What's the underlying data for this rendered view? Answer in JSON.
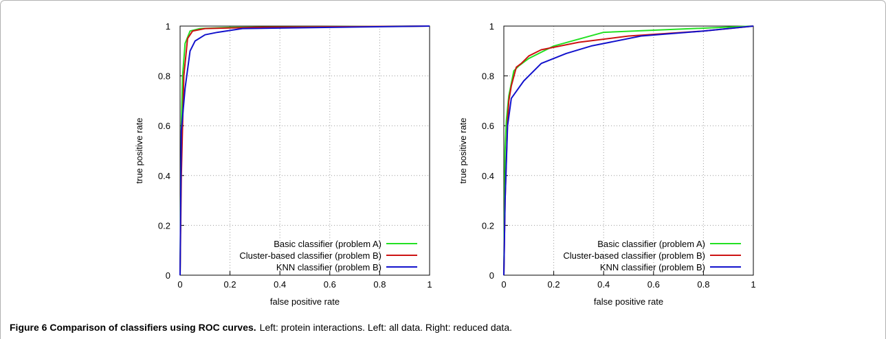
{
  "chart_data": [
    {
      "type": "line",
      "xlabel": "false positive rate",
      "ylabel": "true positive rate",
      "xlim": [
        0,
        1
      ],
      "ylim": [
        0,
        1
      ],
      "xticks": [
        0,
        0.2,
        0.4,
        0.6,
        0.8,
        1
      ],
      "yticks": [
        0,
        0.2,
        0.4,
        0.6,
        0.8,
        1
      ],
      "grid": true,
      "legend": "lower right",
      "series": [
        {
          "name": "Basic classifier (problem A)",
          "color": "#22e022",
          "x": [
            0,
            0.005,
            0.01,
            0.02,
            0.04,
            0.08,
            0.2,
            1
          ],
          "values": [
            0,
            0.6,
            0.8,
            0.93,
            0.98,
            0.99,
            0.995,
            1
          ]
        },
        {
          "name": "Cluster-based classifier (problem B)",
          "color": "#cc1111",
          "x": [
            0,
            0.005,
            0.015,
            0.03,
            0.05,
            0.1,
            0.3,
            1
          ],
          "values": [
            0,
            0.4,
            0.8,
            0.95,
            0.98,
            0.99,
            0.995,
            1
          ]
        },
        {
          "name": "KNN classifier (problem B)",
          "color": "#1111cc",
          "x": [
            0,
            0.005,
            0.02,
            0.04,
            0.06,
            0.1,
            0.15,
            0.25,
            1
          ],
          "values": [
            0,
            0.58,
            0.75,
            0.9,
            0.94,
            0.965,
            0.975,
            0.99,
            1
          ]
        }
      ]
    },
    {
      "type": "line",
      "xlabel": "false positive rate",
      "ylabel": "true positive rate",
      "xlim": [
        0,
        1
      ],
      "ylim": [
        0,
        1
      ],
      "xticks": [
        0,
        0.2,
        0.4,
        0.6,
        0.8,
        1
      ],
      "yticks": [
        0,
        0.2,
        0.4,
        0.6,
        0.8,
        1
      ],
      "grid": true,
      "legend": "lower right",
      "series": [
        {
          "name": "Basic classifier (problem A)",
          "color": "#22e022",
          "x": [
            0,
            0.005,
            0.01,
            0.02,
            0.04,
            0.06,
            0.1,
            0.2,
            0.4,
            1
          ],
          "values": [
            0,
            0.5,
            0.62,
            0.72,
            0.82,
            0.84,
            0.87,
            0.92,
            0.975,
            1
          ]
        },
        {
          "name": "Cluster-based classifier (problem B)",
          "color": "#cc1111",
          "x": [
            0,
            0.005,
            0.015,
            0.02,
            0.03,
            0.05,
            0.07,
            0.1,
            0.15,
            0.2,
            0.3,
            0.5,
            0.8,
            1
          ],
          "values": [
            0,
            0.3,
            0.62,
            0.7,
            0.76,
            0.835,
            0.85,
            0.88,
            0.905,
            0.915,
            0.935,
            0.96,
            0.98,
            1
          ]
        },
        {
          "name": "KNN classifier (problem B)",
          "color": "#1111cc",
          "x": [
            0,
            0.005,
            0.015,
            0.03,
            0.08,
            0.15,
            0.25,
            0.35,
            0.55,
            0.8,
            1
          ],
          "values": [
            0,
            0.3,
            0.6,
            0.71,
            0.78,
            0.85,
            0.89,
            0.92,
            0.96,
            0.98,
            1
          ]
        }
      ]
    }
  ],
  "caption": {
    "label": "Figure 6 Comparison of classifiers using ROC curves.",
    "text": "Left: protein interactions. Left: all data. Right: reduced data."
  }
}
